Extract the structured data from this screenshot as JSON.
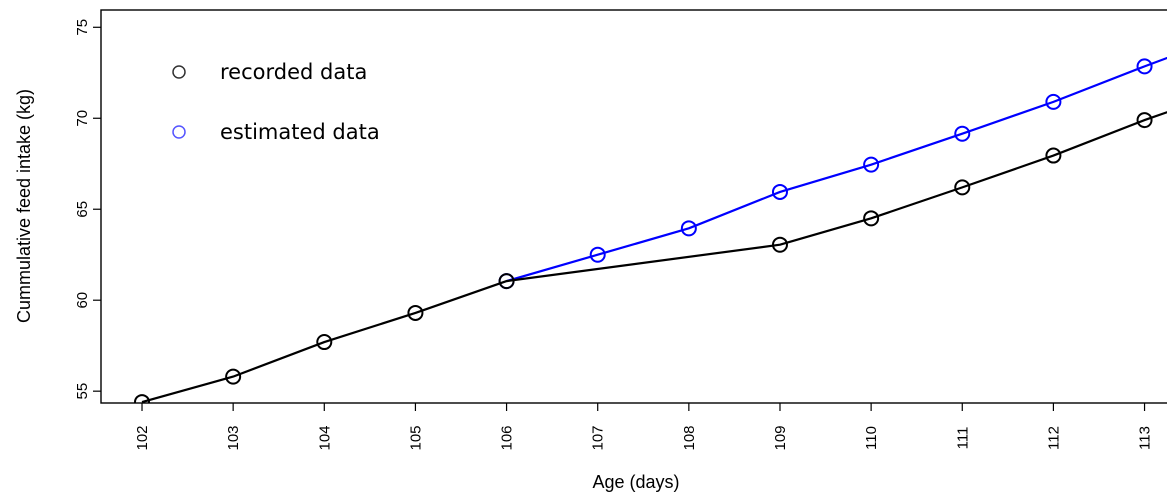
{
  "chart_data": {
    "type": "line",
    "title": "",
    "xlabel": "Age (days)",
    "ylabel": "Cummulative feed intake (kg)",
    "x": [
      102,
      103,
      104,
      105,
      106,
      107,
      108,
      109,
      110,
      111,
      112,
      113
    ],
    "x_tick_labels": [
      "102",
      "103",
      "104",
      "105",
      "106",
      "107",
      "108",
      "109",
      "110",
      "111",
      "112",
      "113"
    ],
    "y_ticks": [
      55,
      60,
      65,
      70,
      75
    ],
    "y_tick_labels": [
      "55",
      "60",
      "65",
      "70",
      "75"
    ],
    "xlim": [
      101.55,
      113.4
    ],
    "ylim": [
      54.35,
      75.95
    ],
    "legend_placement": "top-left",
    "grid": false,
    "series": [
      {
        "name": "recorded data",
        "color": "#000000",
        "x": [
          102,
          103,
          104,
          105,
          106,
          109,
          110,
          111,
          112,
          113
        ],
        "values": [
          54.4,
          55.8,
          57.7,
          59.3,
          61.05,
          63.05,
          64.5,
          66.2,
          67.95,
          69.9
        ],
        "line_end": {
          "x": 113.4,
          "y": 70.6
        }
      },
      {
        "name": "estimated data",
        "color": "#0000ff",
        "x": [
          106,
          107,
          108,
          109,
          110,
          111,
          112,
          113
        ],
        "values": [
          61.05,
          62.5,
          63.95,
          65.95,
          67.45,
          69.15,
          70.9,
          72.85
        ],
        "line_end": {
          "x": 113.4,
          "y": 73.6
        }
      }
    ]
  }
}
